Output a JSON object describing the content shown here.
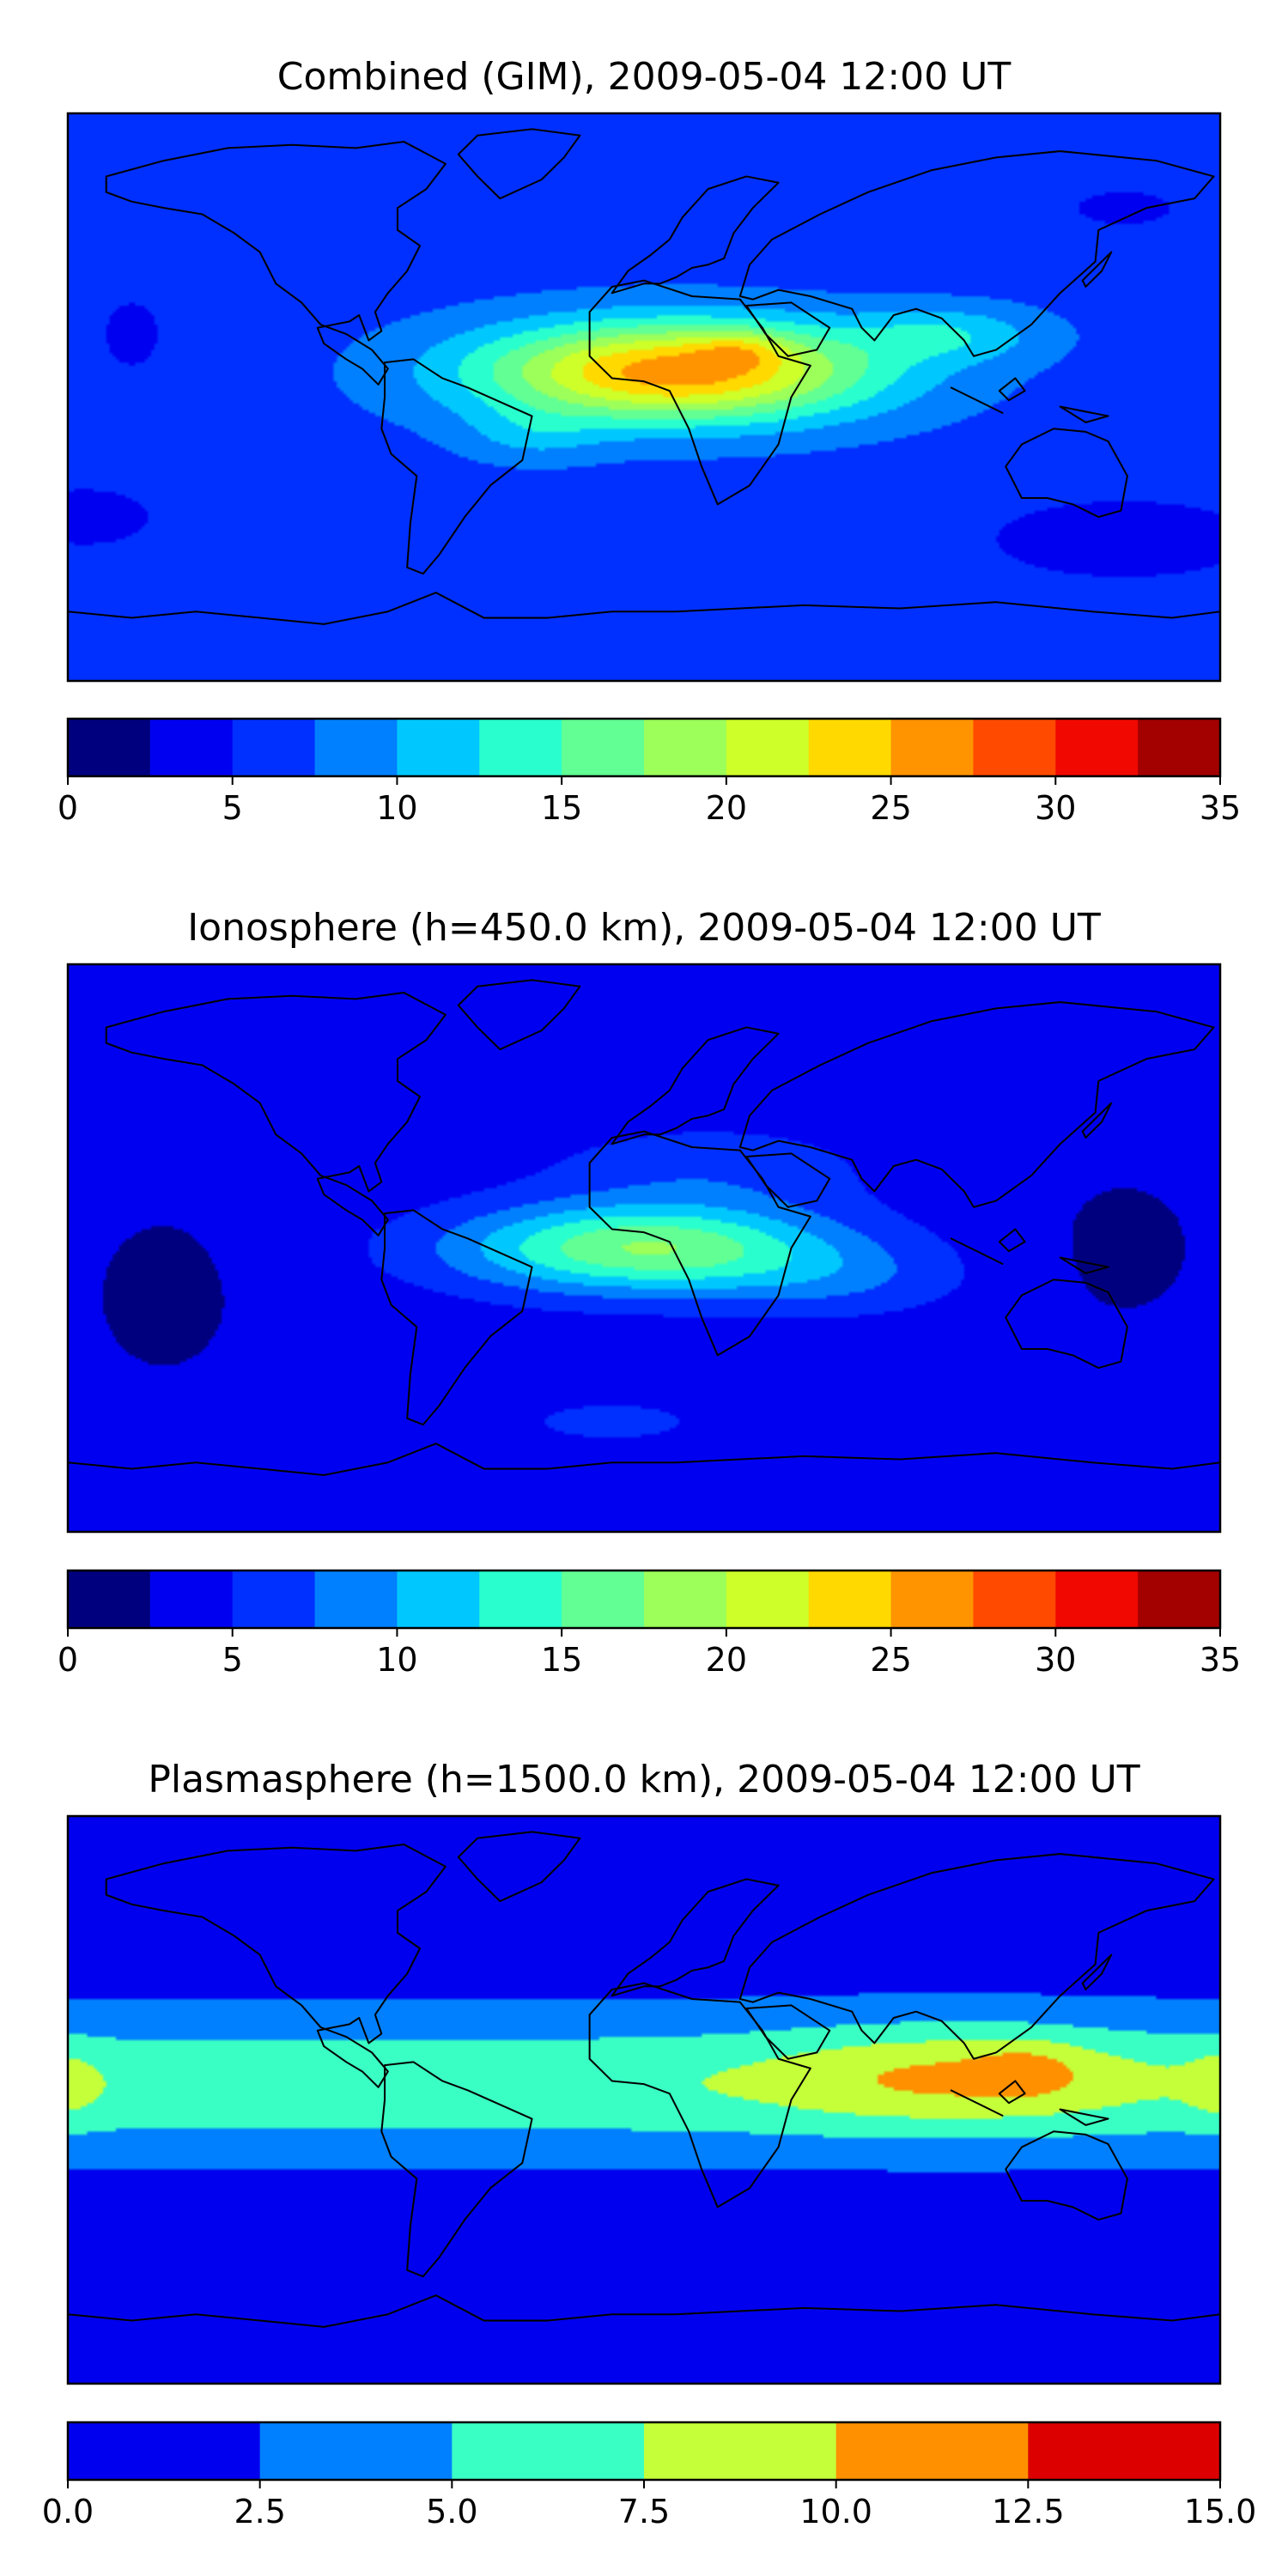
{
  "panels": [
    {
      "title": "Combined (GIM), 2009-05-04 12:00 UT",
      "colorbar": {
        "ticks": [
          "0",
          "5",
          "10",
          "15",
          "20",
          "25",
          "30",
          "35"
        ],
        "levels": [
          0,
          2.5,
          5,
          7.5,
          10,
          12.5,
          15,
          17.5,
          20,
          22.5,
          25,
          27.5,
          30,
          32.5,
          35
        ],
        "colors": [
          "#00007f",
          "#0000f1",
          "#0030ff",
          "#0080ff",
          "#00c8ff",
          "#29ffce",
          "#62ff94",
          "#9cff5a",
          "#ceff29",
          "#ffd900",
          "#ff9400",
          "#ff4a00",
          "#f10800",
          "#a30000"
        ]
      }
    },
    {
      "title": "Ionosphere  (h=450.0 km), 2009-05-04 12:00 UT",
      "colorbar": {
        "ticks": [
          "0",
          "5",
          "10",
          "15",
          "20",
          "25",
          "30",
          "35"
        ],
        "levels": [
          0,
          2.5,
          5,
          7.5,
          10,
          12.5,
          15,
          17.5,
          20,
          22.5,
          25,
          27.5,
          30,
          32.5,
          35
        ],
        "colors": [
          "#00007f",
          "#0000f1",
          "#0030ff",
          "#0080ff",
          "#00c8ff",
          "#29ffce",
          "#62ff94",
          "#9cff5a",
          "#ceff29",
          "#ffd900",
          "#ff9400",
          "#ff4a00",
          "#f10800",
          "#a30000"
        ]
      }
    },
    {
      "title": "Plasmasphere (h=1500.0 km), 2009-05-04 12:00 UT",
      "colorbar": {
        "ticks": [
          "0.0",
          "2.5",
          "5.0",
          "7.5",
          "10.0",
          "12.5",
          "15.0"
        ],
        "levels": [
          0,
          2.5,
          5,
          7.5,
          10,
          12.5,
          15
        ],
        "colors": [
          "#0000ee",
          "#0080ff",
          "#3affc4",
          "#c4ff3a",
          "#ff9000",
          "#dd0000"
        ]
      }
    }
  ],
  "chart_data": [
    {
      "type": "heatmap",
      "title": "Combined (GIM), 2009-05-04 12:00 UT",
      "xlabel": "",
      "ylabel": "",
      "xlim": [
        -180,
        180
      ],
      "ylim": [
        -90,
        90
      ],
      "colorbar_range": [
        0,
        35
      ],
      "base_value": 6.5,
      "features": [
        {
          "lon": 10,
          "lat": 8,
          "sx": 62,
          "sy": 16,
          "peak": 20
        },
        {
          "lon": 30,
          "lat": 15,
          "sx": 15,
          "sy": 6,
          "peak": 4
        },
        {
          "lon": -35,
          "lat": -12,
          "sx": 22,
          "sy": 9,
          "peak": 3
        },
        {
          "lon": 95,
          "lat": 20,
          "sx": 30,
          "sy": 9,
          "peak": 5
        },
        {
          "lon": 150,
          "lat": 60,
          "sx": 20,
          "sy": 7,
          "peak": -2.5
        },
        {
          "lon": -160,
          "lat": 20,
          "sx": 15,
          "sy": 18,
          "peak": -2
        },
        {
          "lon": -175,
          "lat": -38,
          "sx": 28,
          "sy": 12,
          "peak": -2.5
        },
        {
          "lon": 150,
          "lat": -45,
          "sx": 40,
          "sy": 12,
          "peak": -4
        }
      ]
    },
    {
      "type": "heatmap",
      "title": "Ionosphere  (h=450.0 km), 2009-05-04 12:00 UT",
      "xlabel": "",
      "ylabel": "",
      "xlim": [
        -180,
        180
      ],
      "ylim": [
        -90,
        90
      ],
      "colorbar_range": [
        0,
        35
      ],
      "base_value": 3.5,
      "features": [
        {
          "lon": 0,
          "lat": 0,
          "sx": 58,
          "sy": 14,
          "peak": 14
        },
        {
          "lon": 20,
          "lat": 25,
          "sx": 50,
          "sy": 14,
          "peak": 3
        },
        {
          "lon": -10,
          "lat": -55,
          "sx": 25,
          "sy": 6,
          "peak": 3
        },
        {
          "lon": 60,
          "lat": -10,
          "sx": 40,
          "sy": 12,
          "peak": 3
        },
        {
          "lon": -150,
          "lat": -15,
          "sx": 30,
          "sy": 35,
          "peak": -1.5
        },
        {
          "lon": 150,
          "lat": 0,
          "sx": 30,
          "sy": 30,
          "peak": -1.5
        }
      ]
    },
    {
      "type": "heatmap",
      "title": "Plasmasphere (h=1500.0 km), 2009-05-04 12:00 UT",
      "xlabel": "",
      "ylabel": "",
      "xlim": [
        -180,
        180
      ],
      "ylim": [
        -90,
        90
      ],
      "colorbar_range": [
        0,
        15
      ],
      "base_value": 1.2,
      "features": [
        {
          "lon": 0,
          "lat": 5,
          "sx": 9999,
          "sy": 22,
          "peak": 5.8
        },
        {
          "lon": 95,
          "lat": 8,
          "sx": 55,
          "sy": 16,
          "peak": 3.6
        },
        {
          "lon": 120,
          "lat": 10,
          "sx": 16,
          "sy": 9,
          "peak": 2
        },
        {
          "lon": -180,
          "lat": 5,
          "sx": 10,
          "sy": 12,
          "peak": 2
        },
        {
          "lon": 180,
          "lat": 5,
          "sx": 10,
          "sy": 12,
          "peak": 2
        }
      ]
    }
  ]
}
